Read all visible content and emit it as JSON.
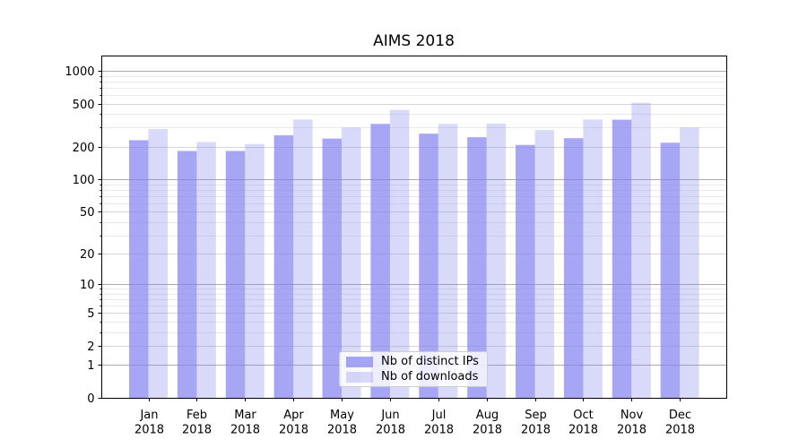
{
  "chart_data": {
    "type": "bar",
    "title": "AIMS 2018",
    "categories": [
      "Jan 2018",
      "Feb 2018",
      "Mar 2018",
      "Apr 2018",
      "May 2018",
      "Jun 2018",
      "Jul 2018",
      "Aug 2018",
      "Sep 2018",
      "Oct 2018",
      "Nov 2018",
      "Dec 2018"
    ],
    "series": [
      {
        "name": "Nb of distinct IPs",
        "color": "#8080f0",
        "opacity": 0.7,
        "values": [
          230,
          183,
          183,
          255,
          238,
          325,
          264,
          245,
          208,
          240,
          355,
          218
        ]
      },
      {
        "name": "Nb of downloads",
        "color": "#8080f0",
        "opacity": 0.3,
        "values": [
          291,
          221,
          212,
          357,
          301,
          437,
          325,
          327,
          285,
          357,
          508,
          301
        ]
      }
    ],
    "yscale": "log1p",
    "yticks": [
      0,
      1,
      2,
      5,
      10,
      20,
      50,
      100,
      200,
      500,
      1000
    ],
    "ylim": [
      0,
      1350
    ],
    "xlabel": "",
    "ylabel": "",
    "grid": "both",
    "legend_position": "lower-center-inside"
  },
  "colors": {
    "bar_base": "#8080f0",
    "grid_major": "#ababab",
    "grid_mid": "#d6d6d6",
    "grid_minor": "#e9e9e9",
    "axis": "#000000",
    "text": "#000000",
    "legend_border": "#cccccc"
  }
}
